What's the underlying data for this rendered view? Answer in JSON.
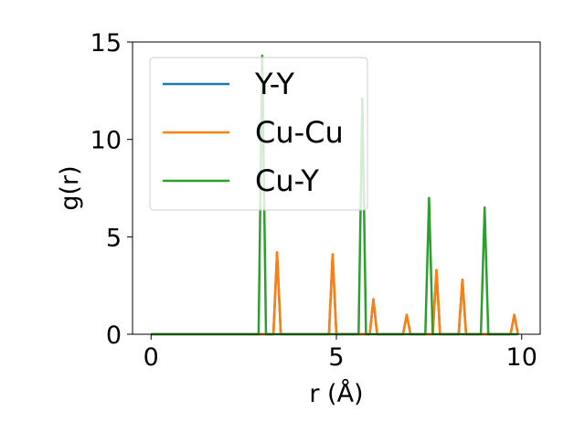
{
  "chart_data": {
    "type": "line",
    "xlabel": "r (Å)",
    "ylabel": "g(r)",
    "xlim": [
      -0.5,
      10.5
    ],
    "ylim": [
      0,
      15
    ],
    "xticks": [
      0,
      5,
      10
    ],
    "yticks": [
      0,
      5,
      10,
      15
    ],
    "grid": false,
    "legend_position": "upper-left",
    "series": [
      {
        "name": "Y-Y",
        "color": "#1f77b4",
        "x": [
          0,
          3.3,
          3.4,
          3.5,
          4.8,
          4.9,
          5.0,
          5.9,
          6.0,
          6.1,
          6.8,
          6.9,
          7.0,
          7.6,
          7.7,
          7.8,
          8.3,
          8.4,
          8.5,
          9.7,
          9.8,
          9.9
        ],
        "y": [
          0,
          0,
          4.2,
          0,
          0,
          4.1,
          0,
          0,
          1.8,
          0,
          0,
          1.0,
          0,
          0,
          3.3,
          0,
          0,
          2.8,
          0,
          0,
          1.0,
          0
        ]
      },
      {
        "name": "Cu-Cu",
        "color": "#ff7f0e",
        "x": [
          0,
          3.3,
          3.4,
          3.5,
          4.8,
          4.9,
          5.0,
          5.9,
          6.0,
          6.1,
          6.8,
          6.9,
          7.0,
          7.6,
          7.7,
          7.8,
          8.3,
          8.4,
          8.5,
          9.7,
          9.8,
          9.9
        ],
        "y": [
          0,
          0,
          4.2,
          0,
          0,
          4.1,
          0,
          0,
          1.8,
          0,
          0,
          1.0,
          0,
          0,
          3.3,
          0,
          0,
          2.8,
          0,
          0,
          1.0,
          0
        ]
      },
      {
        "name": "Cu-Y",
        "color": "#2ca02c",
        "x": [
          0,
          2.9,
          3.0,
          3.1,
          5.6,
          5.7,
          5.8,
          7.4,
          7.5,
          7.6,
          8.9,
          9.0,
          9.1,
          9.9
        ],
        "y": [
          0,
          0,
          14.3,
          0,
          0,
          12.1,
          0,
          0,
          7.0,
          0,
          0,
          6.5,
          0,
          0
        ]
      }
    ]
  }
}
